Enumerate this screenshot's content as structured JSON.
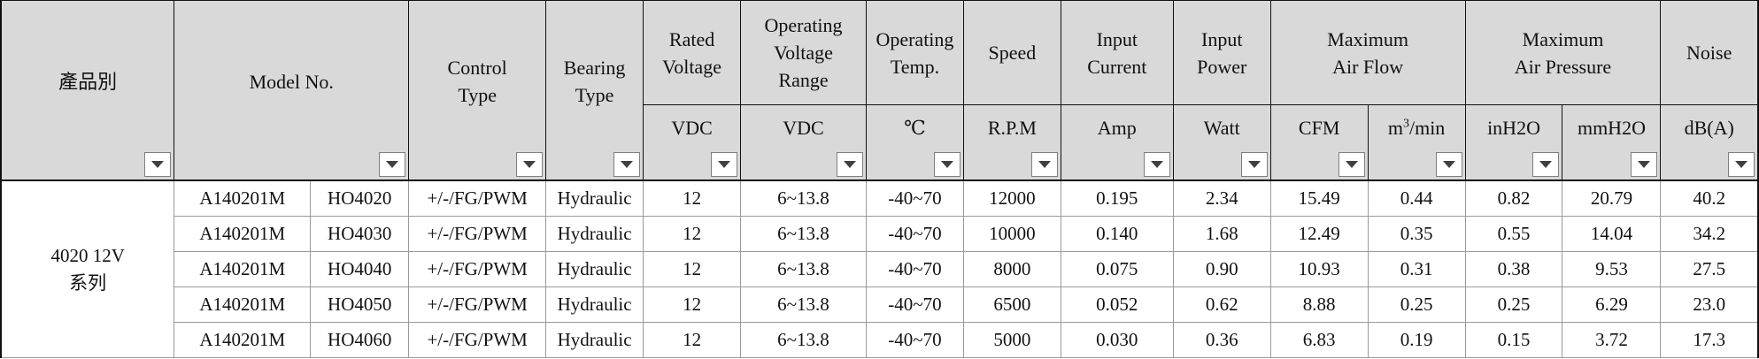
{
  "headers": {
    "product": "產品別",
    "model": "Model No.",
    "control": [
      "Control",
      "Type"
    ],
    "bearing": [
      "Bearing",
      "Type"
    ],
    "rated_voltage": [
      "Rated",
      "Voltage"
    ],
    "operating_voltage": [
      "Operating",
      "Voltage",
      "Range"
    ],
    "operating_temp": [
      "Operating",
      "Temp."
    ],
    "speed": "Speed",
    "input_current": [
      "Input",
      "Current"
    ],
    "input_power": [
      "Input",
      "Power"
    ],
    "max_air_flow": [
      "Maximum",
      "Air Flow"
    ],
    "max_air_pressure": [
      "Maximum",
      "Air Pressure"
    ],
    "noise": "Noise"
  },
  "units": {
    "rated_voltage": "VDC",
    "operating_voltage": "VDC",
    "operating_temp": "℃",
    "speed": "R.P.M",
    "input_current": "Amp",
    "input_power": "Watt",
    "air_flow_cfm": "CFM",
    "air_flow_m3_base": "m",
    "air_flow_m3_sup": "3",
    "air_flow_m3_rest": "/min",
    "pressure_inh2o": "inH2O",
    "pressure_mmh2o": "mmH2O",
    "noise": "dB(A)"
  },
  "series_label": [
    "4020 12V",
    "系列"
  ],
  "rows": [
    {
      "model": "A140201M",
      "code": "HO4020",
      "control": "+/-/FG/PWM",
      "bearing": "Hydraulic",
      "rated_voltage": "12",
      "voltage_range": "6~13.8",
      "temp": "-40~70",
      "speed": "12000",
      "current": "0.195",
      "power": "2.34",
      "cfm": "15.49",
      "m3min": "0.44",
      "inh2o": "0.82",
      "mmh2o": "20.79",
      "noise": "40.2"
    },
    {
      "model": "A140201M",
      "code": "HO4030",
      "control": "+/-/FG/PWM",
      "bearing": "Hydraulic",
      "rated_voltage": "12",
      "voltage_range": "6~13.8",
      "temp": "-40~70",
      "speed": "10000",
      "current": "0.140",
      "power": "1.68",
      "cfm": "12.49",
      "m3min": "0.35",
      "inh2o": "0.55",
      "mmh2o": "14.04",
      "noise": "34.2"
    },
    {
      "model": "A140201M",
      "code": "HO4040",
      "control": "+/-/FG/PWM",
      "bearing": "Hydraulic",
      "rated_voltage": "12",
      "voltage_range": "6~13.8",
      "temp": "-40~70",
      "speed": "8000",
      "current": "0.075",
      "power": "0.90",
      "cfm": "10.93",
      "m3min": "0.31",
      "inh2o": "0.38",
      "mmh2o": "9.53",
      "noise": "27.5"
    },
    {
      "model": "A140201M",
      "code": "HO4050",
      "control": "+/-/FG/PWM",
      "bearing": "Hydraulic",
      "rated_voltage": "12",
      "voltage_range": "6~13.8",
      "temp": "-40~70",
      "speed": "6500",
      "current": "0.052",
      "power": "0.62",
      "cfm": "8.88",
      "m3min": "0.25",
      "inh2o": "0.25",
      "mmh2o": "6.29",
      "noise": "23.0"
    },
    {
      "model": "A140201M",
      "code": "HO4060",
      "control": "+/-/FG/PWM",
      "bearing": "Hydraulic",
      "rated_voltage": "12",
      "voltage_range": "6~13.8",
      "temp": "-40~70",
      "speed": "5000",
      "current": "0.030",
      "power": "0.36",
      "cfm": "6.83",
      "m3min": "0.19",
      "inh2o": "0.15",
      "mmh2o": "3.72",
      "noise": "17.3"
    }
  ],
  "icons": {
    "filter": "filter-dropdown-icon"
  }
}
